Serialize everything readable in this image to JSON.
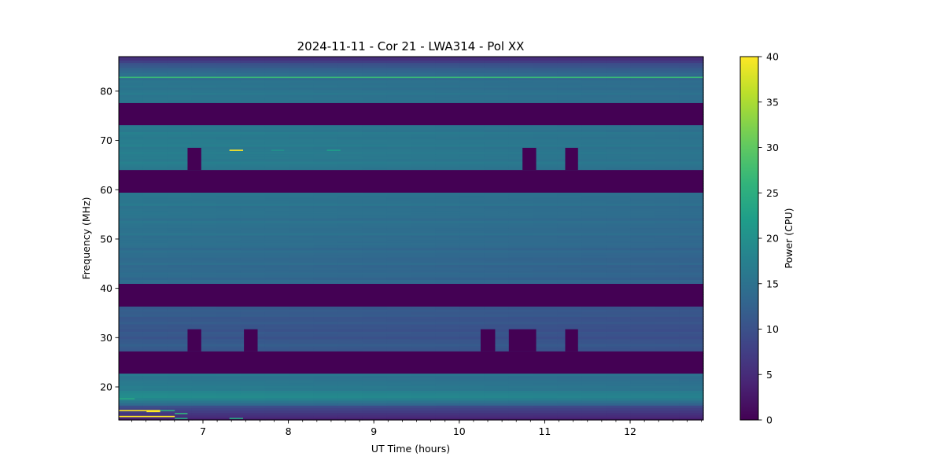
{
  "chart_data": {
    "type": "heatmap",
    "title": "2024-11-11 - Cor 21 - LWA314 - Pol XX",
    "xlabel": "UT Time (hours)",
    "ylabel": "Frequency (MHz)",
    "xlim": [
      6.015,
      12.856
    ],
    "ylim": [
      13.3,
      87.0
    ],
    "xticks": [
      7,
      8,
      9,
      10,
      11,
      12
    ],
    "xtick_labels": [
      "7",
      "8",
      "9",
      "10",
      "11",
      "12"
    ],
    "x_minor_step_hours": 0.16667,
    "yticks": [
      20,
      30,
      40,
      50,
      60,
      70,
      80
    ],
    "ytick_labels": [
      "20",
      "30",
      "40",
      "50",
      "60",
      "70",
      "80"
    ],
    "colorbar": {
      "label": "Power (CPU)",
      "range": [
        0,
        40
      ],
      "ticks": [
        0,
        5,
        10,
        15,
        20,
        25,
        30,
        35,
        40
      ],
      "tick_labels": [
        "0",
        "5",
        "10",
        "15",
        "20",
        "25",
        "30",
        "35",
        "40"
      ],
      "colormap": "viridis"
    },
    "time_trend_fraction_drop": 0.1,
    "frequency_profile_mhz_power": [
      [
        13.3,
        4
      ],
      [
        14,
        5
      ],
      [
        15,
        7
      ],
      [
        16,
        10
      ],
      [
        17,
        16
      ],
      [
        18,
        20
      ],
      [
        19,
        18
      ],
      [
        20,
        17
      ],
      [
        21,
        16
      ],
      [
        22,
        16
      ],
      [
        22.7,
        16
      ],
      [
        27.2,
        11
      ],
      [
        28,
        12
      ],
      [
        30,
        11
      ],
      [
        32,
        11
      ],
      [
        34,
        11.5
      ],
      [
        36.3,
        12
      ],
      [
        40.9,
        14
      ],
      [
        43,
        14
      ],
      [
        45,
        14
      ],
      [
        48,
        14.5
      ],
      [
        50,
        15
      ],
      [
        55,
        15.5
      ],
      [
        59.4,
        16
      ],
      [
        64.0,
        16.5
      ],
      [
        66,
        17
      ],
      [
        68,
        17
      ],
      [
        70,
        17
      ],
      [
        73.1,
        16.5
      ],
      [
        77.6,
        16
      ],
      [
        80,
        16
      ],
      [
        82,
        15.5
      ],
      [
        84,
        14
      ],
      [
        85,
        12
      ],
      [
        86,
        8
      ],
      [
        87,
        5
      ]
    ],
    "masked_bands_mhz": [
      [
        73.1,
        77.6
      ],
      [
        59.4,
        64.0
      ],
      [
        36.3,
        40.9
      ],
      [
        22.7,
        27.2
      ]
    ],
    "masked_notches": [
      {
        "t": [
          6.82,
          6.98
        ],
        "f": [
          64.0,
          68.5
        ]
      },
      {
        "t": [
          10.74,
          10.9
        ],
        "f": [
          64.0,
          68.5
        ]
      },
      {
        "t": [
          11.24,
          11.39
        ],
        "f": [
          64.0,
          68.5
        ]
      },
      {
        "t": [
          6.82,
          6.98
        ],
        "f": [
          27.2,
          31.7
        ]
      },
      {
        "t": [
          7.48,
          7.64
        ],
        "f": [
          27.2,
          31.7
        ]
      },
      {
        "t": [
          10.25,
          10.42
        ],
        "f": [
          27.2,
          31.7
        ]
      },
      {
        "t": [
          10.58,
          10.9
        ],
        "f": [
          27.2,
          31.7
        ]
      },
      {
        "t": [
          11.24,
          11.39
        ],
        "f": [
          27.2,
          31.7
        ]
      }
    ],
    "rfi_lines": [
      {
        "f": 82.8,
        "t": [
          6.015,
          12.856
        ],
        "power": 27
      },
      {
        "f": 68.0,
        "t": [
          7.31,
          7.47
        ],
        "power": 40
      },
      {
        "f": 68.0,
        "t": [
          7.8,
          7.95
        ],
        "power": 20
      },
      {
        "f": 68.0,
        "t": [
          8.45,
          8.61
        ],
        "power": 22
      },
      {
        "f": 15.2,
        "t": [
          6.015,
          6.5
        ],
        "power": 40
      },
      {
        "f": 15.0,
        "t": [
          6.34,
          6.5
        ],
        "power": 40
      },
      {
        "f": 15.2,
        "t": [
          6.5,
          6.67
        ],
        "power": 25
      },
      {
        "f": 14.0,
        "t": [
          6.015,
          6.67
        ],
        "power": 40
      },
      {
        "f": 14.6,
        "t": [
          6.67,
          6.82
        ],
        "power": 26
      },
      {
        "f": 13.6,
        "t": [
          6.67,
          6.82
        ],
        "power": 24
      },
      {
        "f": 13.6,
        "t": [
          7.31,
          7.47
        ],
        "power": 24
      },
      {
        "f": 17.6,
        "t": [
          6.015,
          6.2
        ],
        "power": 24
      }
    ]
  }
}
